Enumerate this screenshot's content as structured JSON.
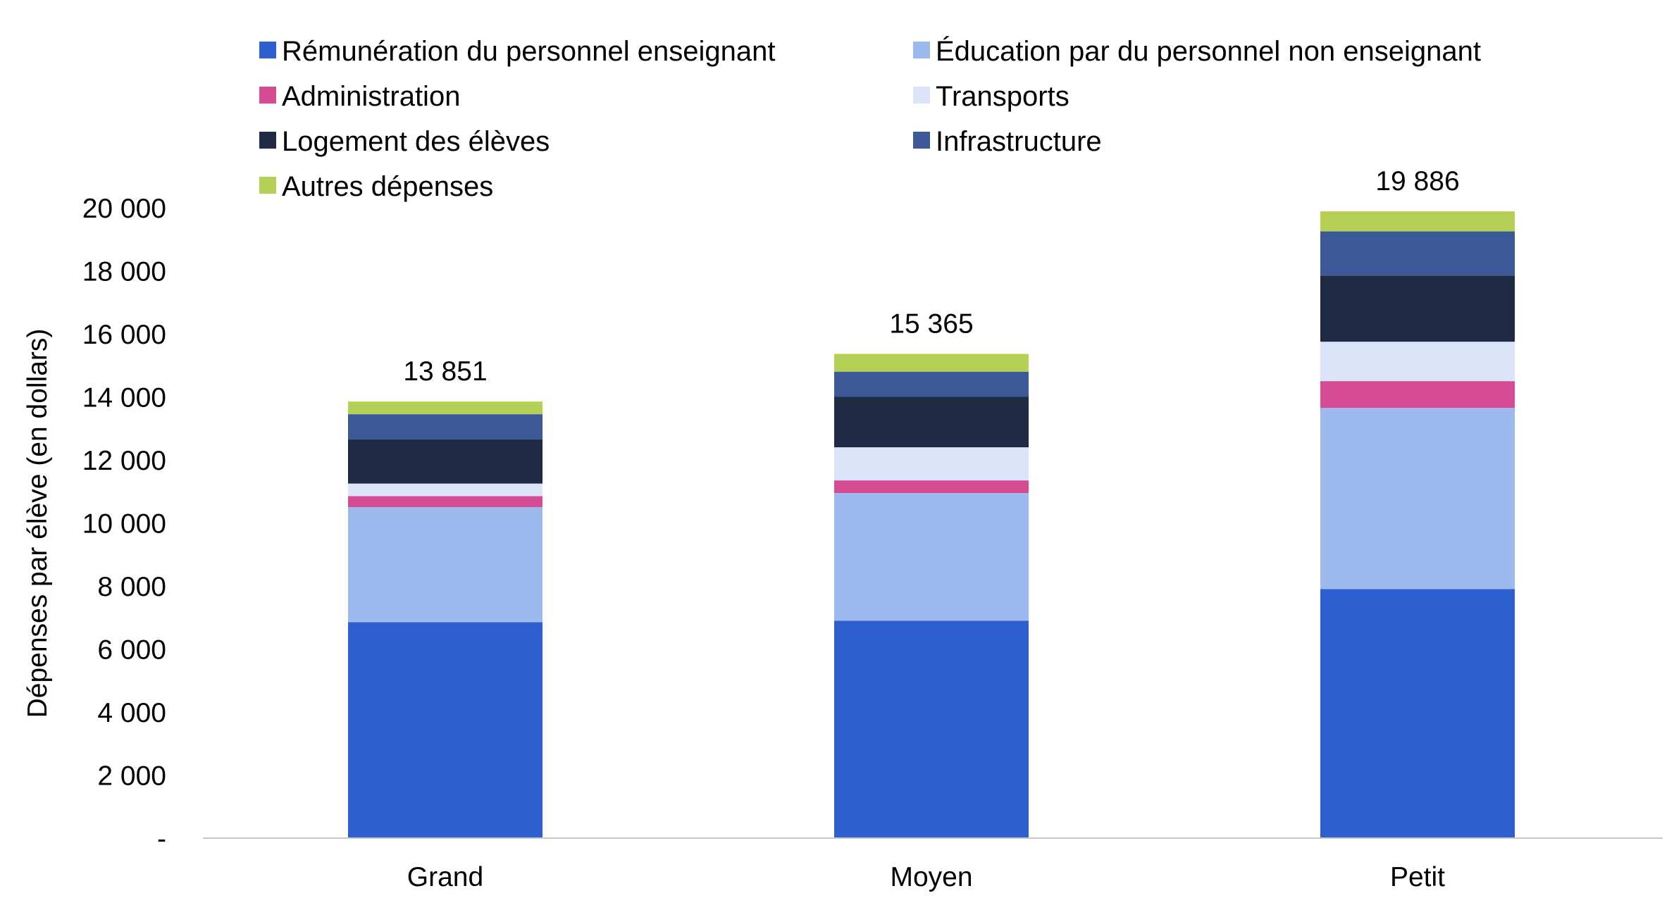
{
  "chart_data": {
    "type": "bar",
    "stacked": true,
    "title": "",
    "xlabel": "",
    "ylabel": "Dépenses par élève (en dollars)",
    "ylim": [
      0,
      20000
    ],
    "y_tick_labels": [
      "-",
      "2 000",
      "4 000",
      "6 000",
      "8 000",
      "10 000",
      "12 000",
      "14 000",
      "16 000",
      "18 000",
      "20 000"
    ],
    "y_tick_values": [
      0,
      2000,
      4000,
      6000,
      8000,
      10000,
      12000,
      14000,
      16000,
      18000,
      20000
    ],
    "grid": false,
    "legend_position": "top",
    "categories": [
      "Grand",
      "Moyen",
      "Petit"
    ],
    "totals": [
      13851,
      15365,
      19886
    ],
    "total_labels": [
      "13 851",
      "15 365",
      "19 886"
    ],
    "series": [
      {
        "name": "Rémunération du personnel enseignant",
        "color": "#2d5fce",
        "values": [
          6850,
          6900,
          7900
        ]
      },
      {
        "name": "Éducation par du personnel non enseignant",
        "color": "#9dbaef",
        "values": [
          3650,
          4050,
          5750
        ]
      },
      {
        "name": "Administration",
        "color": "#d64c94",
        "values": [
          350,
          400,
          850
        ]
      },
      {
        "name": "Transports",
        "color": "#dbe4f9",
        "values": [
          400,
          1050,
          1250
        ]
      },
      {
        "name": "Logement des élèves",
        "color": "#1f2b45",
        "values": [
          1400,
          1600,
          2100
        ]
      },
      {
        "name": "Infrastructure",
        "color": "#3c5896",
        "values": [
          800,
          800,
          1400
        ]
      },
      {
        "name": "Autres dépenses",
        "color": "#b6d055",
        "values": [
          401,
          565,
          636
        ]
      }
    ]
  }
}
